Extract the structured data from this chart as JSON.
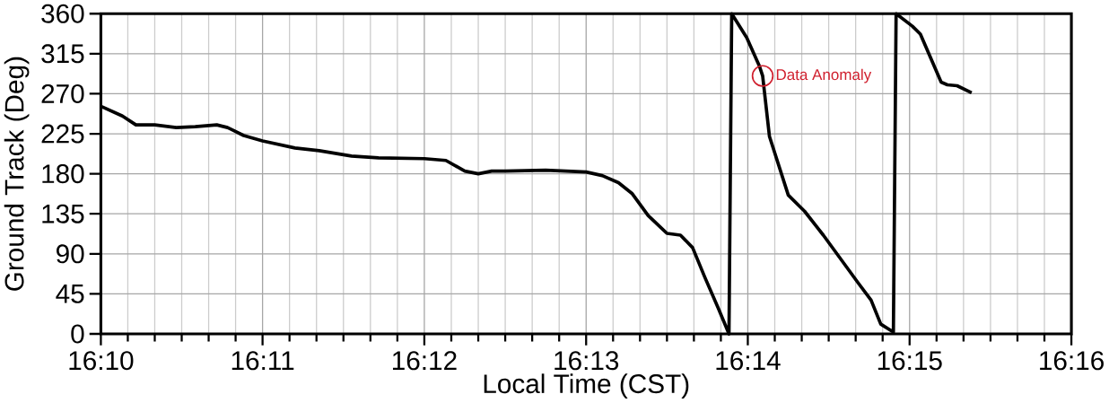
{
  "chart_data": {
    "type": "line",
    "xlabel": "Local Time (CST)",
    "ylabel": "Ground Track (Deg)",
    "x": [
      16.16667,
      16.16889,
      16.17028,
      16.17222,
      16.17444,
      16.17639,
      16.17861,
      16.17972,
      16.18139,
      16.18333,
      16.18667,
      16.18917,
      16.1925,
      16.19528,
      16.2,
      16.20222,
      16.20417,
      16.20556,
      16.20694,
      16.20833,
      16.2125,
      16.21667,
      16.21833,
      16.22,
      16.22139,
      16.22306,
      16.225,
      16.22639,
      16.22764,
      16.22889,
      16.23028,
      16.23139,
      16.23167,
      16.23322,
      16.23453,
      16.23486,
      16.23556,
      16.2375,
      16.23917,
      16.24111,
      16.24278,
      16.24472,
      16.24603,
      16.24703,
      16.24833,
      16.24861,
      16.25028,
      16.25111,
      16.25325,
      16.25389,
      16.25489,
      16.25639
    ],
    "series": [
      {
        "color": "#000000",
        "values": [
          256,
          245,
          235,
          235,
          232,
          233,
          235,
          232,
          223,
          217,
          209,
          206,
          200,
          198,
          197,
          195,
          183,
          180,
          183,
          183,
          184,
          182,
          178,
          170,
          158,
          133,
          113,
          111,
          97,
          64,
          29,
          0,
          360,
          333,
          301,
          290,
          222,
          156,
          138,
          111,
          86,
          57,
          38,
          11,
          2,
          360,
          346,
          337,
          283,
          280,
          279,
          271
        ]
      }
    ],
    "xlim": [
      16.16667,
      16.26667
    ],
    "xticks": [
      {
        "value": 16.16667,
        "label": "16:10"
      },
      {
        "value": 16.18333,
        "label": "16:11"
      },
      {
        "value": 16.2,
        "label": "16:12"
      },
      {
        "value": 16.21667,
        "label": "16:13"
      },
      {
        "value": 16.23333,
        "label": "16:14"
      },
      {
        "value": 16.25,
        "label": "16:15"
      },
      {
        "value": 16.26667,
        "label": "16:16"
      }
    ],
    "ylim": [
      0,
      360
    ],
    "yticks": [
      0,
      45,
      90,
      135,
      180,
      225,
      270,
      315,
      360
    ],
    "grid": true,
    "line_style": "solid",
    "marker": "none",
    "annotations": [
      {
        "text": "Data Anomaly",
        "x": 16.23486,
        "y": 290
      }
    ]
  }
}
